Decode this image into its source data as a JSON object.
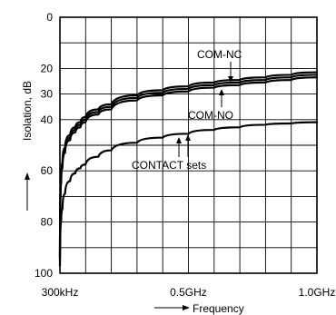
{
  "chart_data": {
    "type": "line",
    "xlabel": "Frequency",
    "ylabel": "Isolation, dB",
    "x_ticks": [
      {
        "value": 0.0003,
        "label": "300kHz"
      },
      {
        "value": 0.5,
        "label": "0.5GHz"
      },
      {
        "value": 1.0,
        "label": "1.0GHz"
      }
    ],
    "y_ticks": [
      {
        "value": 0,
        "label": "0"
      },
      {
        "value": 20,
        "label": "20"
      },
      {
        "value": 30,
        "label": "30"
      },
      {
        "value": 40,
        "label": "40"
      },
      {
        "value": 60,
        "label": "60"
      },
      {
        "value": 80,
        "label": "80"
      },
      {
        "value": 100,
        "label": "100"
      }
    ],
    "xlim": [
      0.0003,
      1.0
    ],
    "ylim": [
      0,
      100
    ],
    "y_inverted": true,
    "grid": true,
    "series": [
      {
        "name": "COM-NC",
        "x": [
          0.0003,
          0.005,
          0.01,
          0.02,
          0.04,
          0.06,
          0.08,
          0.1,
          0.15,
          0.2,
          0.3,
          0.4,
          0.5,
          0.6,
          0.7,
          0.8,
          0.9,
          1.0
        ],
        "y": [
          93,
          63,
          57,
          51,
          46,
          43,
          41,
          39,
          36,
          34,
          30.5,
          28.5,
          27,
          25.5,
          24.5,
          23.5,
          22.5,
          21.5
        ]
      },
      {
        "name": "",
        "x": [
          0.0003,
          0.005,
          0.01,
          0.02,
          0.04,
          0.06,
          0.08,
          0.1,
          0.15,
          0.2,
          0.3,
          0.4,
          0.5,
          0.6,
          0.7,
          0.8,
          0.9,
          1.0
        ],
        "y": [
          94,
          64,
          58,
          52,
          47,
          44,
          42,
          40,
          37,
          35,
          31.5,
          29.5,
          28,
          26.5,
          25.5,
          24.5,
          23.5,
          22.5
        ]
      },
      {
        "name": "COM-NO",
        "x": [
          0.0003,
          0.005,
          0.01,
          0.02,
          0.04,
          0.06,
          0.08,
          0.1,
          0.15,
          0.2,
          0.3,
          0.4,
          0.5,
          0.6,
          0.7,
          0.8,
          0.9,
          1.0
        ],
        "y": [
          95,
          65,
          59,
          53,
          48,
          45,
          43,
          41,
          38,
          36,
          32.5,
          30.5,
          29,
          27.5,
          26.5,
          25.5,
          24.5,
          23.5
        ]
      },
      {
        "name": "CONTACT sets",
        "x": [
          0.0003,
          0.005,
          0.01,
          0.02,
          0.04,
          0.06,
          0.08,
          0.1,
          0.15,
          0.2,
          0.3,
          0.4,
          0.5,
          0.6,
          0.7,
          0.8,
          0.9,
          1.0
        ],
        "y": [
          97,
          80,
          75,
          69,
          64,
          61,
          59,
          57.5,
          54.5,
          52,
          49,
          47,
          45.5,
          44,
          43,
          42,
          41.5,
          41
        ]
      }
    ],
    "annotations": [
      {
        "text": "COM-NC"
      },
      {
        "text": "COM-NO"
      },
      {
        "text": "CONTACT sets"
      }
    ]
  },
  "colors": {
    "line": "#000000",
    "grid": "#000000",
    "background": "#ffffff"
  }
}
